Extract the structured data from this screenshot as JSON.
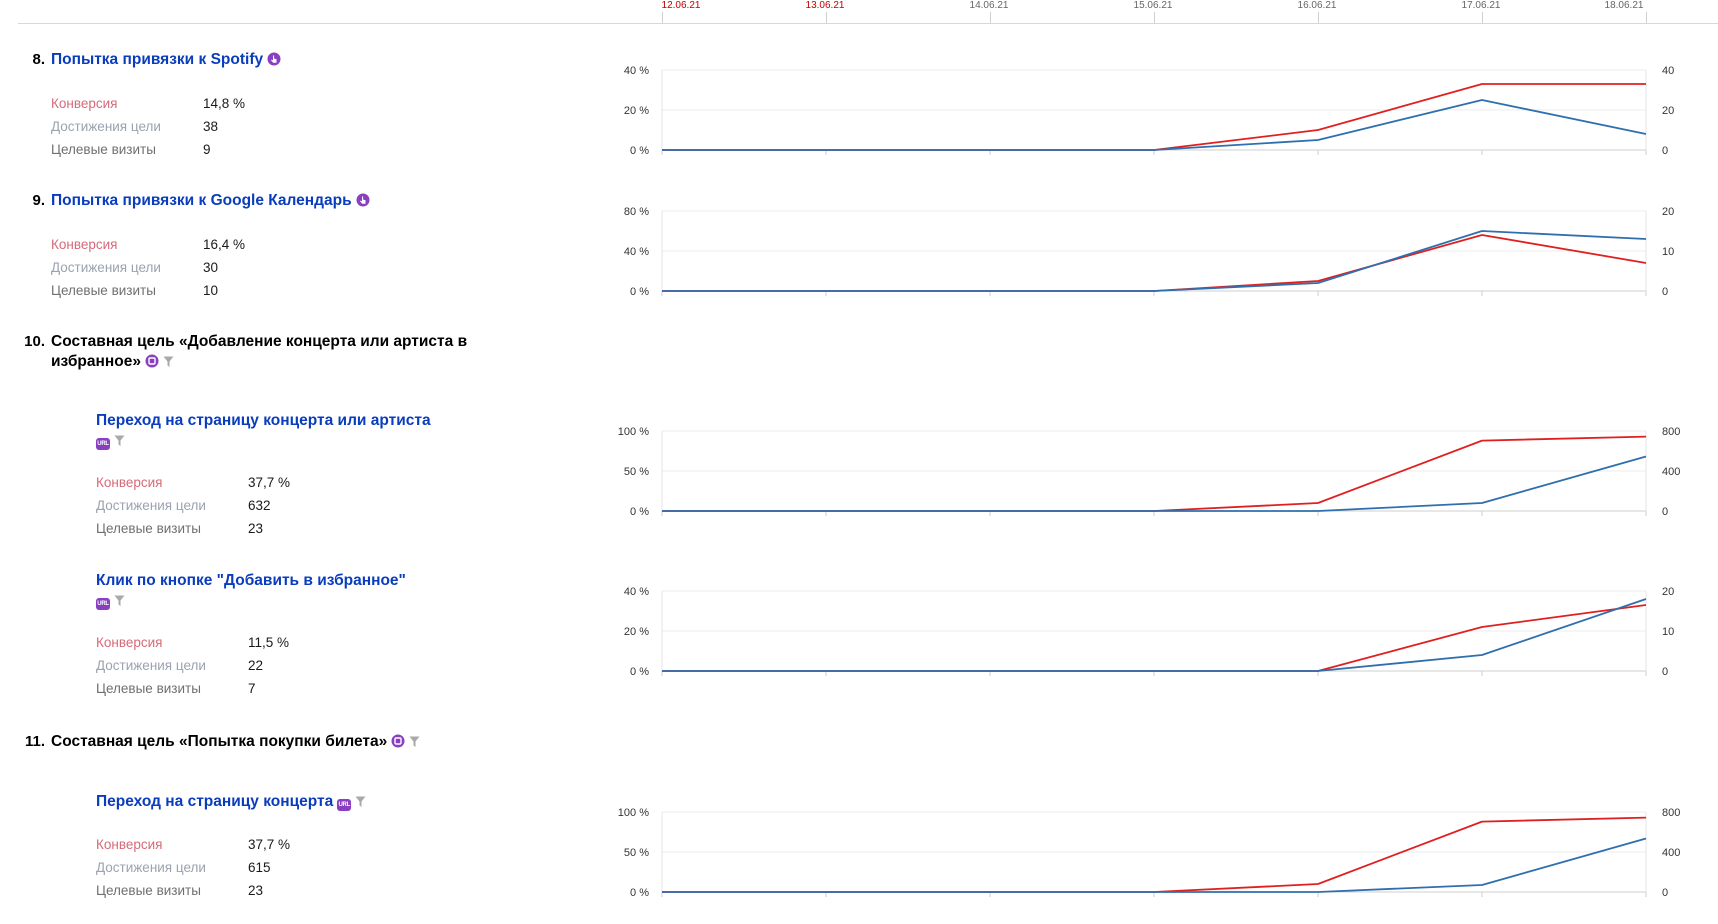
{
  "axis": {
    "dates": [
      {
        "label": "12.06.21",
        "weekend": true
      },
      {
        "label": "13.06.21",
        "weekend": true
      },
      {
        "label": "14.06.21",
        "weekend": false
      },
      {
        "label": "15.06.21",
        "weekend": false
      },
      {
        "label": "16.06.21",
        "weekend": false
      },
      {
        "label": "17.06.21",
        "weekend": false
      },
      {
        "label": "18.06.21",
        "weekend": false
      }
    ]
  },
  "labels": {
    "conversion": "Конверсия",
    "reaches": "Достижения цели",
    "visits": "Целевые визиты"
  },
  "colors": {
    "conversion_line": "#e02020",
    "reach_line": "#2f6fae",
    "link": "#0a3dbd",
    "icon_purple": "#8a3fc0",
    "filter_icon": "#a9a9a9"
  },
  "goals": [
    {
      "num": "8.",
      "title": "Попытка привязки к Spotify",
      "icon": "click-icon",
      "conversion": "14,8 %",
      "reaches": "38",
      "visits": "9"
    },
    {
      "num": "9.",
      "title": "Попытка привязки к Google Календарь",
      "icon": "click-icon",
      "conversion": "16,4 %",
      "reaches": "30",
      "visits": "10"
    },
    {
      "num": "10.",
      "title_line1": "Составная цель «Добавление концерта или артиста в",
      "title_line2": "избранное»",
      "icon": "composite-goal-icon",
      "steps": [
        {
          "title": "Переход на страницу концерта или артиста",
          "icon": "url-icon",
          "conversion": "37,7 %",
          "reaches": "632",
          "visits": "23"
        },
        {
          "title": "Клик по кнопке \"Добавить в избранное\"",
          "icon": "url-icon",
          "conversion": "11,5 %",
          "reaches": "22",
          "visits": "7"
        }
      ]
    },
    {
      "num": "11.",
      "title": "Составная цель «Попытка покупки билета»",
      "icon": "composite-goal-icon",
      "steps": [
        {
          "title": "Переход на страницу концерта",
          "icon": "url-icon",
          "conversion": "37,7 %",
          "reaches": "615",
          "visits": "23"
        }
      ]
    }
  ],
  "url_badge_text": "URL",
  "chart_data": [
    {
      "type": "line",
      "goal": "Попытка привязки к Spotify",
      "x": [
        "12.06.21",
        "13.06.21",
        "14.06.21",
        "15.06.21",
        "16.06.21",
        "17.06.21",
        "18.06.21"
      ],
      "left_axis": {
        "ticks": [
          "0 %",
          "20 %",
          "40 %"
        ],
        "range": [
          0,
          40
        ]
      },
      "right_axis": {
        "ticks": [
          "0",
          "20",
          "40"
        ],
        "range": [
          0,
          40
        ]
      },
      "series": [
        {
          "axis": "left",
          "color": "#e02020",
          "values": [
            0,
            0,
            0,
            0,
            10,
            33,
            33
          ]
        },
        {
          "axis": "right",
          "color": "#2f6fae",
          "values": [
            0,
            0,
            0,
            0,
            5,
            25,
            8
          ]
        }
      ]
    },
    {
      "type": "line",
      "goal": "Попытка привязки к Google Календарь",
      "x": [
        "12.06.21",
        "13.06.21",
        "14.06.21",
        "15.06.21",
        "16.06.21",
        "17.06.21",
        "18.06.21"
      ],
      "left_axis": {
        "ticks": [
          "0 %",
          "40 %",
          "80 %"
        ],
        "range": [
          0,
          80
        ]
      },
      "right_axis": {
        "ticks": [
          "0",
          "10",
          "20"
        ],
        "range": [
          0,
          20
        ]
      },
      "series": [
        {
          "axis": "left",
          "color": "#e02020",
          "values": [
            0,
            0,
            0,
            0,
            10,
            56,
            28
          ]
        },
        {
          "axis": "right",
          "color": "#2f6fae",
          "values": [
            0,
            0,
            0,
            0,
            2,
            15,
            13
          ]
        }
      ]
    },
    {
      "type": "line",
      "goal": "Переход на страницу концерта или артиста",
      "x": [
        "12.06.21",
        "13.06.21",
        "14.06.21",
        "15.06.21",
        "16.06.21",
        "17.06.21",
        "18.06.21"
      ],
      "left_axis": {
        "ticks": [
          "0 %",
          "50 %",
          "100 %"
        ],
        "range": [
          0,
          100
        ]
      },
      "right_axis": {
        "ticks": [
          "0",
          "400",
          "800"
        ],
        "range": [
          0,
          800
        ]
      },
      "series": [
        {
          "axis": "left",
          "color": "#e02020",
          "values": [
            0,
            0,
            0,
            0,
            10,
            88,
            93
          ]
        },
        {
          "axis": "right",
          "color": "#2f6fae",
          "values": [
            0,
            0,
            0,
            0,
            0,
            80,
            545
          ]
        }
      ]
    },
    {
      "type": "line",
      "goal": "Клик по кнопке \"Добавить в избранное\"",
      "x": [
        "12.06.21",
        "13.06.21",
        "14.06.21",
        "15.06.21",
        "16.06.21",
        "17.06.21",
        "18.06.21"
      ],
      "left_axis": {
        "ticks": [
          "0 %",
          "20 %",
          "40 %"
        ],
        "range": [
          0,
          40
        ]
      },
      "right_axis": {
        "ticks": [
          "0",
          "10",
          "20"
        ],
        "range": [
          0,
          20
        ]
      },
      "series": [
        {
          "axis": "left",
          "color": "#e02020",
          "values": [
            0,
            0,
            0,
            0,
            0,
            22,
            33
          ]
        },
        {
          "axis": "right",
          "color": "#2f6fae",
          "values": [
            0,
            0,
            0,
            0,
            0,
            4,
            18
          ]
        }
      ]
    },
    {
      "type": "line",
      "goal": "Переход на страницу концерта",
      "x": [
        "12.06.21",
        "13.06.21",
        "14.06.21",
        "15.06.21",
        "16.06.21",
        "17.06.21",
        "18.06.21"
      ],
      "left_axis": {
        "ticks": [
          "0 %",
          "50 %",
          "100 %"
        ],
        "range": [
          0,
          100
        ]
      },
      "right_axis": {
        "ticks": [
          "0",
          "400",
          "800"
        ],
        "range": [
          0,
          800
        ]
      },
      "series": [
        {
          "axis": "left",
          "color": "#e02020",
          "values": [
            0,
            0,
            0,
            0,
            10,
            88,
            93
          ]
        },
        {
          "axis": "right",
          "color": "#2f6fae",
          "values": [
            0,
            0,
            0,
            0,
            0,
            70,
            535
          ]
        }
      ]
    }
  ]
}
